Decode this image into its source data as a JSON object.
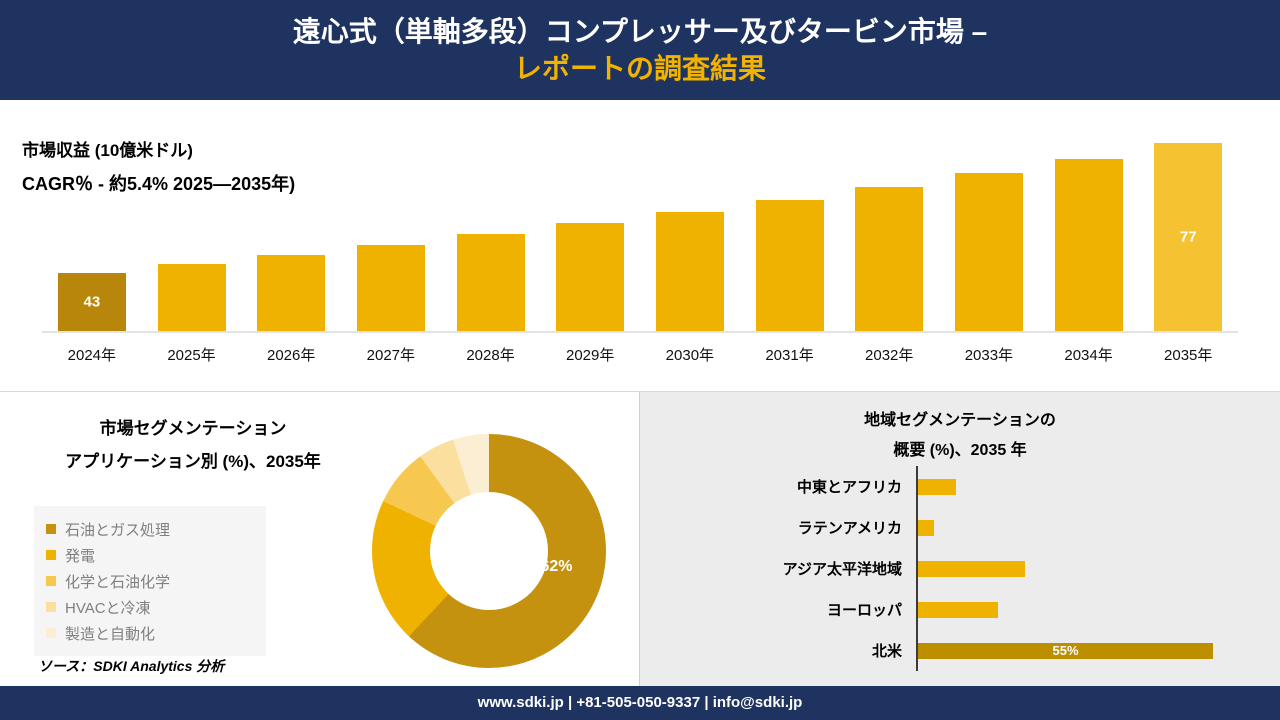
{
  "header": {
    "title_line1": "遠心式（単軸多段）コンプレッサー及びタービン市場 –",
    "title_line2": "レポートの調査結果"
  },
  "chart_data": [
    {
      "id": "revenue",
      "type": "bar",
      "title": "市場収益 (10億米ドル)",
      "subtitle": "CAGR％ - 約5.4% 2025―2035年)",
      "categories": [
        "2024年",
        "2025年",
        "2026年",
        "2027年",
        "2028年",
        "2029年",
        "2030年",
        "2031年",
        "2032年",
        "2033年",
        "2034年",
        "2035年"
      ],
      "values": [
        43,
        45.3,
        47.8,
        50.4,
        53.1,
        56,
        59,
        62.2,
        65.5,
        69.1,
        72.8,
        77
      ],
      "data_label_first": "43",
      "data_label_last": "77",
      "bar_color": "#f0b200",
      "first_bar_color": "#b8860b",
      "last_bar_color": "#f5c331",
      "grid": false,
      "ylabel": "市場収益 (10億米ドル)"
    },
    {
      "id": "application",
      "type": "pie",
      "title_line1": "市場セグメンテーション",
      "title_line2": "アプリケーション別 (%)、2035年",
      "segments": [
        {
          "label": "石油とガス処理",
          "value": 62,
          "color": "#c5920f"
        },
        {
          "label": "発電",
          "value": 20,
          "color": "#f0b200"
        },
        {
          "label": "化学と石油化学",
          "value": 8,
          "color": "#f6c84f"
        },
        {
          "label": "HVACと冷凍",
          "value": 5,
          "color": "#fadf9f"
        },
        {
          "label": "製造と自動化",
          "value": 5,
          "color": "#fceed2"
        }
      ],
      "center_label": "62%",
      "legend_position": "left"
    },
    {
      "id": "region",
      "type": "bar_horizontal",
      "title_line1": "地域セグメンテーションの",
      "title_line2": "概要 (%)、2035 年",
      "categories": [
        "中東とアフリカ",
        "ラテンアメリカ",
        "アジア太平洋地域",
        "ヨーロッパ",
        "北米"
      ],
      "values": [
        7,
        3,
        20,
        15,
        55
      ],
      "bar_color": "#f0b200",
      "highlight_index": 4,
      "highlight_color": "#bd8e00",
      "highlight_label": "55%"
    }
  ],
  "source_note": "ソース：SDKI Analytics 分析",
  "footer": {
    "text": "www.sdki.jp | +81-505-050-9337 | info@sdki.jp"
  }
}
